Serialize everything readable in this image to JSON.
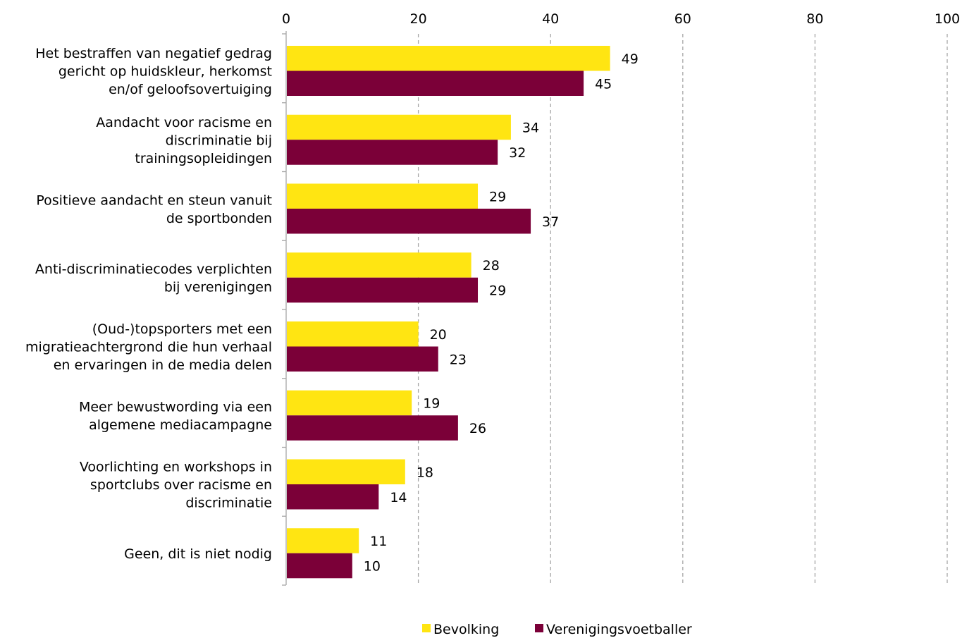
{
  "chart_data": {
    "type": "bar",
    "orientation": "horizontal",
    "categories": [
      [
        "Het bestraffen van negatief gedrag",
        "gericht op huidskleur, herkomst",
        "en/of geloofsovertuiging"
      ],
      [
        "Aandacht voor racisme en",
        "discriminatie bij",
        "trainingsopleidingen"
      ],
      [
        "Positieve aandacht en steun vanuit",
        "de sportbonden"
      ],
      [
        "Anti-discriminatiecodes verplichten",
        "bij verenigingen"
      ],
      [
        "(Oud-)topsporters met een",
        "migratieachtergrond die hun verhaal",
        "en ervaringen in de media delen"
      ],
      [
        "Meer bewustwording via een",
        "algemene mediacampagne"
      ],
      [
        "Voorlichting en workshops in",
        "sportclubs over racisme en",
        "discriminatie"
      ],
      [
        "Geen, dit is niet nodig"
      ]
    ],
    "series": [
      {
        "name": "Bevolking",
        "color": "#ffe512",
        "values": [
          49,
          34,
          29,
          28,
          20,
          19,
          18,
          11
        ]
      },
      {
        "name": "Verenigingsvoetballer",
        "color": "#7b0038",
        "values": [
          45,
          32,
          37,
          29,
          23,
          26,
          14,
          10
        ]
      }
    ],
    "xlim": [
      0,
      100
    ],
    "ticks": [
      0,
      20,
      40,
      60,
      80,
      100
    ],
    "tick_labels": [
      "0",
      "20",
      "40",
      "60",
      "80",
      "100"
    ],
    "axis_position": "top",
    "grid": true,
    "grid_style": "dashed",
    "legend_position": "bottom-center",
    "title": "",
    "xlabel": "",
    "ylabel": ""
  }
}
